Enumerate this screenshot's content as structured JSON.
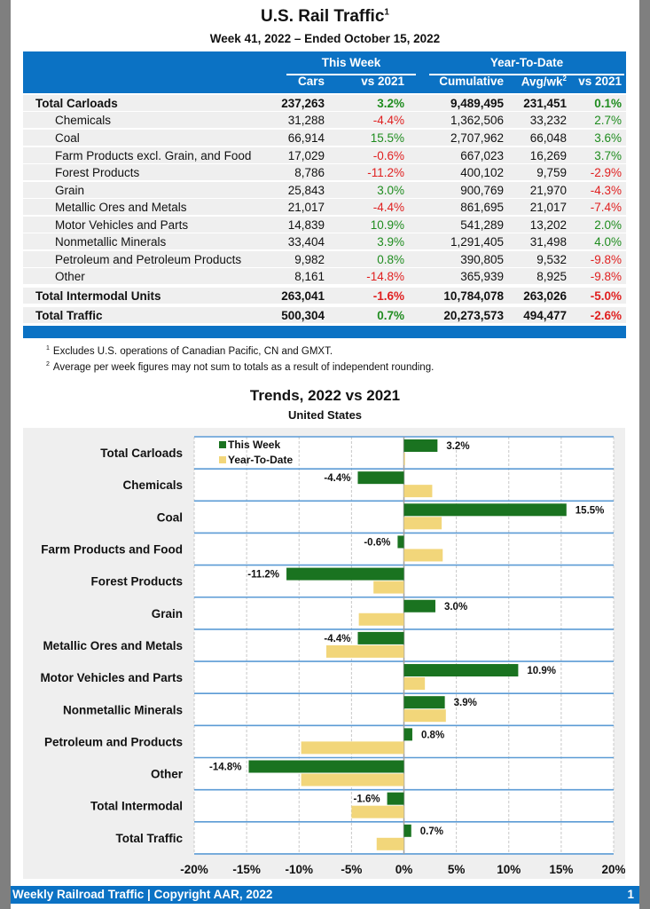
{
  "header": {
    "title": "U.S. Rail Traffic",
    "title_sup": "1",
    "subtitle": "Week 41, 2022 – Ended October 15, 2022"
  },
  "table": {
    "group_headers": [
      "This Week",
      "Year-To-Date"
    ],
    "columns": [
      "Cars",
      "vs 2021",
      "Cumulative",
      "Avg/wk",
      "vs 2021"
    ],
    "avg_sup": "2",
    "rows": [
      {
        "label": "Total Carloads",
        "bold": true,
        "cars": "237,263",
        "vs2021": "3.2%",
        "cumulative": "9,489,495",
        "avgwk": "231,451",
        "ytd_vs2021": "0.1%"
      },
      {
        "label": "Chemicals",
        "bold": false,
        "cars": "31,288",
        "vs2021": "-4.4%",
        "cumulative": "1,362,506",
        "avgwk": "33,232",
        "ytd_vs2021": "2.7%"
      },
      {
        "label": "Coal",
        "bold": false,
        "cars": "66,914",
        "vs2021": "15.5%",
        "cumulative": "2,707,962",
        "avgwk": "66,048",
        "ytd_vs2021": "3.6%"
      },
      {
        "label": "Farm Products excl. Grain, and Food",
        "bold": false,
        "cars": "17,029",
        "vs2021": "-0.6%",
        "cumulative": "667,023",
        "avgwk": "16,269",
        "ytd_vs2021": "3.7%"
      },
      {
        "label": "Forest Products",
        "bold": false,
        "cars": "8,786",
        "vs2021": "-11.2%",
        "cumulative": "400,102",
        "avgwk": "9,759",
        "ytd_vs2021": "-2.9%"
      },
      {
        "label": "Grain",
        "bold": false,
        "cars": "25,843",
        "vs2021": "3.0%",
        "cumulative": "900,769",
        "avgwk": "21,970",
        "ytd_vs2021": "-4.3%"
      },
      {
        "label": "Metallic Ores and Metals",
        "bold": false,
        "cars": "21,017",
        "vs2021": "-4.4%",
        "cumulative": "861,695",
        "avgwk": "21,017",
        "ytd_vs2021": "-7.4%"
      },
      {
        "label": "Motor Vehicles and Parts",
        "bold": false,
        "cars": "14,839",
        "vs2021": "10.9%",
        "cumulative": "541,289",
        "avgwk": "13,202",
        "ytd_vs2021": "2.0%"
      },
      {
        "label": "Nonmetallic Minerals",
        "bold": false,
        "cars": "33,404",
        "vs2021": "3.9%",
        "cumulative": "1,291,405",
        "avgwk": "31,498",
        "ytd_vs2021": "4.0%"
      },
      {
        "label": "Petroleum and Petroleum Products",
        "bold": false,
        "cars": "9,982",
        "vs2021": "0.8%",
        "cumulative": "390,805",
        "avgwk": "9,532",
        "ytd_vs2021": "-9.8%"
      },
      {
        "label": "Other",
        "bold": false,
        "cars": "8,161",
        "vs2021": "-14.8%",
        "cumulative": "365,939",
        "avgwk": "8,925",
        "ytd_vs2021": "-9.8%"
      },
      {
        "label": "Total Intermodal Units",
        "bold": true,
        "cars": "263,041",
        "vs2021": "-1.6%",
        "cumulative": "10,784,078",
        "avgwk": "263,026",
        "ytd_vs2021": "-5.0%"
      },
      {
        "label": "Total Traffic",
        "bold": true,
        "cars": "500,304",
        "vs2021": "0.7%",
        "cumulative": "20,273,573",
        "avgwk": "494,477",
        "ytd_vs2021": "-2.6%"
      }
    ]
  },
  "footnotes": [
    {
      "mark": "1",
      "text": "Excludes U.S. operations of Canadian Pacific, CN and GMXT."
    },
    {
      "mark": "2",
      "text": "Average per week figures may not sum to totals as a result of independent rounding."
    }
  ],
  "colors": {
    "brand_blue": "#0b72c4",
    "positive": "#1f8c1f",
    "negative": "#e01f1f",
    "this_week_bar": "#1a7320",
    "ytd_bar": "#f2d67a"
  },
  "chart_data": {
    "type": "bar",
    "orientation": "horizontal",
    "title": "Trends, 2022 vs 2021",
    "subtitle": "United States",
    "xlabel": "",
    "ylabel": "",
    "xlim": [
      -20,
      20
    ],
    "xticks": [
      -20,
      -15,
      -10,
      -5,
      0,
      5,
      10,
      15,
      20
    ],
    "xtick_labels": [
      "-20%",
      "-15%",
      "-10%",
      "-5%",
      "0%",
      "5%",
      "10%",
      "15%",
      "20%"
    ],
    "grid": true,
    "legend_position": "top-left",
    "categories": [
      "Total Carloads",
      "Chemicals",
      "Coal",
      "Farm Products and Food",
      "Forest Products",
      "Grain",
      "Metallic Ores and Metals",
      "Motor Vehicles and Parts",
      "Nonmetallic Minerals",
      "Petroleum and Products",
      "Other",
      "Total Intermodal",
      "Total Traffic"
    ],
    "series": [
      {
        "name": "This Week",
        "values": [
          3.2,
          -4.4,
          15.5,
          -0.6,
          -11.2,
          3.0,
          -4.4,
          10.9,
          3.9,
          0.8,
          -14.8,
          -1.6,
          0.7
        ],
        "labels": [
          "3.2%",
          "-4.4%",
          "15.5%",
          "-0.6%",
          "-11.2%",
          "3.0%",
          "-4.4%",
          "10.9%",
          "3.9%",
          "0.8%",
          "-14.8%",
          "-1.6%",
          "0.7%"
        ]
      },
      {
        "name": "Year-To-Date",
        "values": [
          0.1,
          2.7,
          3.6,
          3.7,
          -2.9,
          -4.3,
          -7.4,
          2.0,
          4.0,
          -9.8,
          -9.8,
          -5.0,
          -2.6
        ]
      }
    ]
  },
  "footer": {
    "left": "Weekly Railroad Traffic | Copyright AAR, 2022",
    "page": "1"
  }
}
